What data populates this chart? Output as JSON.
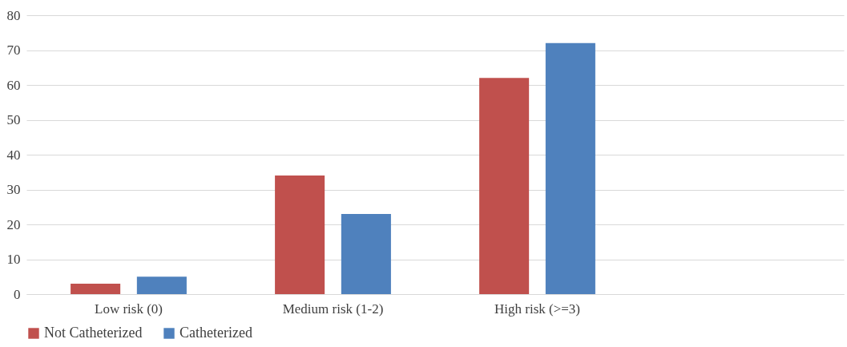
{
  "chart_data": {
    "type": "bar",
    "categories": [
      "Low risk (0)",
      "Medium risk (1-2)",
      "High risk (>=3)",
      null
    ],
    "series": [
      {
        "name": "Not Catheterized",
        "color": "#c0504d",
        "values": [
          3,
          34,
          62,
          null
        ]
      },
      {
        "name": "Catheterized",
        "color": "#4f81bd",
        "values": [
          5,
          23,
          72,
          null
        ]
      }
    ],
    "ylim": [
      0,
      80
    ],
    "yticks": [
      0,
      10,
      20,
      30,
      40,
      50,
      60,
      70,
      80
    ],
    "grid": "y",
    "legend": "bottom"
  }
}
